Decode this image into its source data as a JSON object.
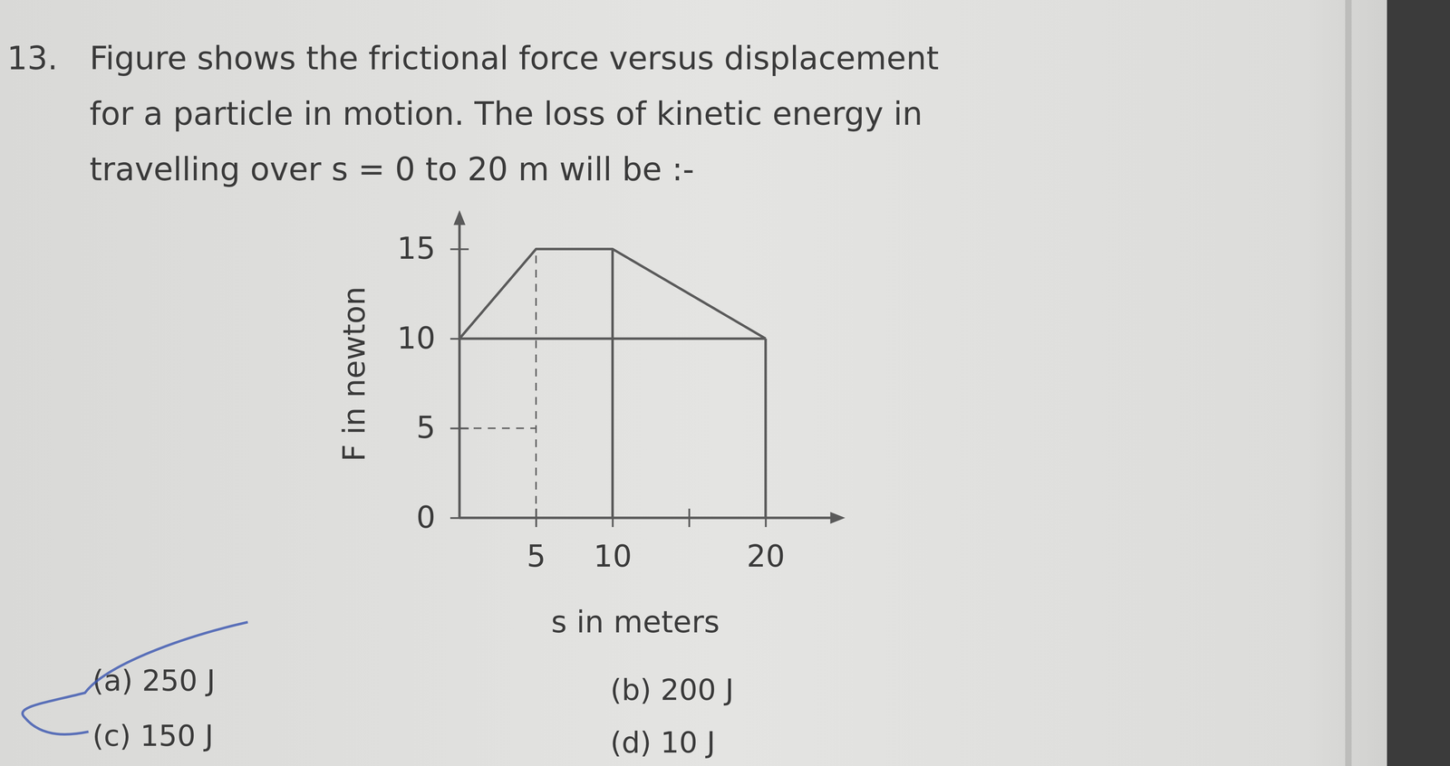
{
  "question": {
    "number": "13.",
    "lines": [
      "Figure shows the frictional force versus displacement",
      "for a particle in motion. The loss of kinetic energy in",
      "travelling over s = 0 to 20 m will be :-"
    ]
  },
  "options": [
    "(a) 250 J",
    "(b) 200 J",
    "(c) 150 J",
    "(d) 10 J"
  ],
  "chart_data": {
    "type": "line",
    "x": [
      0,
      5,
      10,
      20
    ],
    "values": [
      10,
      15,
      15,
      10
    ],
    "x_label": "s in meters",
    "y_label": "F in newton",
    "xlim": [
      0,
      25
    ],
    "ylim": [
      0,
      17
    ],
    "xticks": [
      5,
      10,
      {
        "value": 15,
        "label": null
      },
      20
    ],
    "yticks": [
      0,
      5,
      10,
      15
    ],
    "color": "#5a5a5a"
  }
}
